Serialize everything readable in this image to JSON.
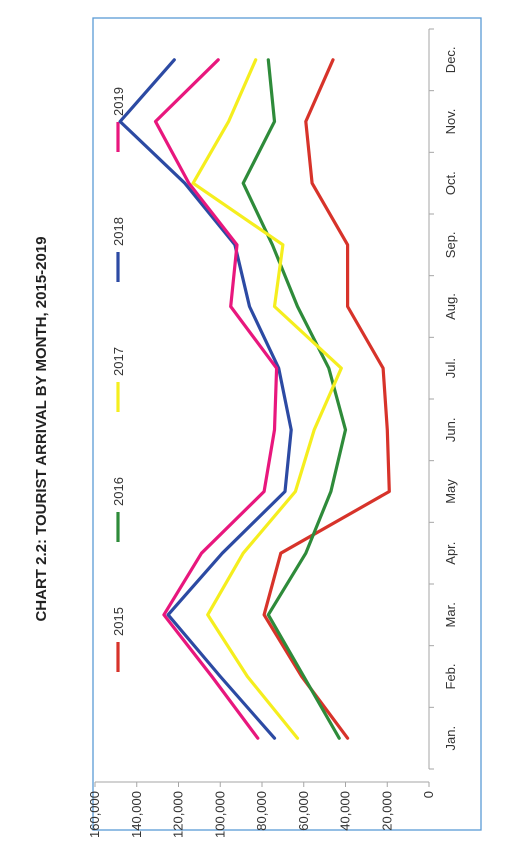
{
  "chart_data": {
    "type": "line",
    "orientation": "rotated-90",
    "title": "CHART 2.2: TOURIST ARRIVAL BY MONTH, 2015-2019",
    "categories": [
      "Jan.",
      "Feb.",
      "Mar.",
      "Apr.",
      "May",
      "Jun.",
      "Jul.",
      "Aug.",
      "Sep.",
      "Oct.",
      "Nov.",
      "Dec."
    ],
    "ylim": [
      0,
      160000
    ],
    "y_ticks": [
      0,
      20000,
      40000,
      60000,
      80000,
      100000,
      120000,
      140000,
      160000
    ],
    "y_tick_labels": [
      "0",
      "20,000",
      "40,000",
      "60,000",
      "80,000",
      "100,000",
      "120,000",
      "140,000",
      "160,000"
    ],
    "grid": false,
    "legend_position": "top",
    "series": [
      {
        "name": "2015",
        "color": "#d7332a",
        "values": [
          39000,
          61000,
          79000,
          71000,
          19000,
          20000,
          22000,
          39000,
          39000,
          56000,
          59000,
          46000
        ]
      },
      {
        "name": "2016",
        "color": "#2e8b3a",
        "values": [
          43000,
          60000,
          77000,
          59000,
          47000,
          40000,
          48000,
          63000,
          75000,
          89000,
          74000,
          77000
        ]
      },
      {
        "name": "2017",
        "color": "#f5ee1e",
        "values": [
          63000,
          87000,
          106000,
          89000,
          64000,
          55000,
          42000,
          74000,
          70000,
          113000,
          96000,
          83000
        ]
      },
      {
        "name": "2018",
        "color": "#2c4aa3",
        "values": [
          74000,
          100000,
          125000,
          99000,
          69000,
          66000,
          72000,
          86000,
          93000,
          117000,
          148000,
          122000
        ]
      },
      {
        "name": "2019",
        "color": "#e8177d",
        "values": [
          82000,
          104000,
          127000,
          109000,
          79000,
          74000,
          73000,
          95000,
          92000,
          115000,
          131000,
          101000
        ]
      }
    ]
  }
}
